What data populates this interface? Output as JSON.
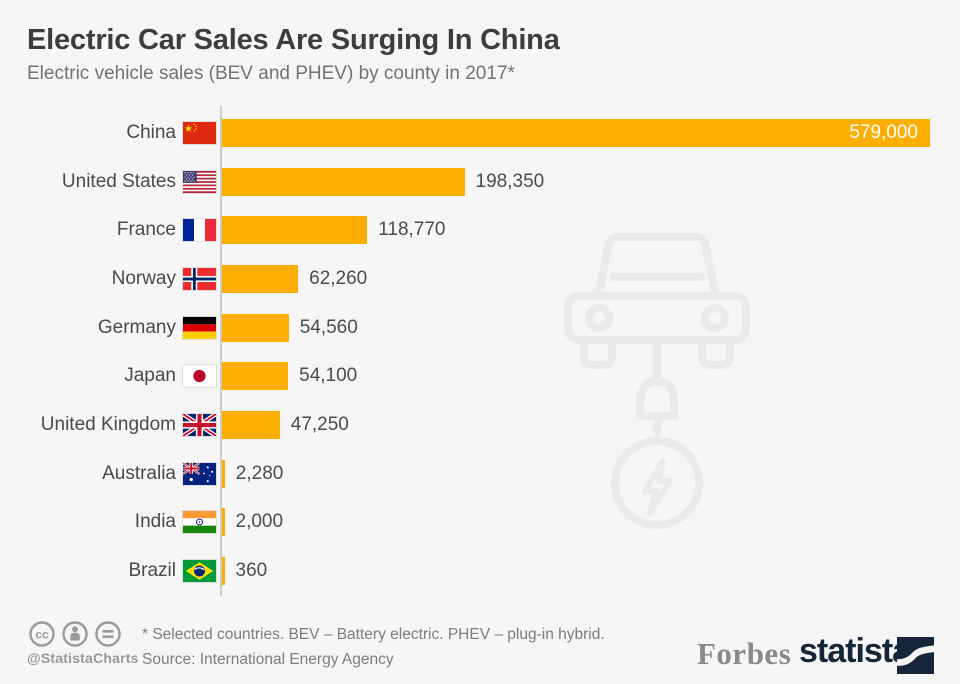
{
  "header": {
    "title": "Electric Car Sales Are Surging In China",
    "subtitle": "Electric vehicle sales (BEV and PHEV) by county in 2017*"
  },
  "chart_data": {
    "type": "bar",
    "orientation": "horizontal",
    "title": "Electric Car Sales Are Surging In China",
    "xlabel": "",
    "ylabel": "",
    "xlim": [
      0,
      579000
    ],
    "grid": false,
    "legend": false,
    "bar_color": "#fcae02",
    "categories": [
      "China",
      "United States",
      "France",
      "Norway",
      "Germany",
      "Japan",
      "United Kingdom",
      "Australia",
      "India",
      "Brazil"
    ],
    "values": [
      579000,
      198350,
      118770,
      62260,
      54560,
      54100,
      47250,
      2280,
      2000,
      360
    ],
    "rows": [
      {
        "country": "China",
        "value": 579000,
        "label": "579,000",
        "flag": "cn"
      },
      {
        "country": "United States",
        "value": 198350,
        "label": "198,350",
        "flag": "us"
      },
      {
        "country": "France",
        "value": 118770,
        "label": "118,770",
        "flag": "fr"
      },
      {
        "country": "Norway",
        "value": 62260,
        "label": "62,260",
        "flag": "no"
      },
      {
        "country": "Germany",
        "value": 54560,
        "label": "54,560",
        "flag": "de"
      },
      {
        "country": "Japan",
        "value": 54100,
        "label": "54,100",
        "flag": "jp"
      },
      {
        "country": "United Kingdom",
        "value": 47250,
        "label": "47,250",
        "flag": "gb"
      },
      {
        "country": "Australia",
        "value": 2280,
        "label": "2,280",
        "flag": "au"
      },
      {
        "country": "India",
        "value": 2000,
        "label": "2,000",
        "flag": "in"
      },
      {
        "country": "Brazil",
        "value": 360,
        "label": "360",
        "flag": "br"
      }
    ]
  },
  "footer": {
    "handle": "@StatistaCharts",
    "note": "* Selected countries. BEV – Battery electric. PHEV – plug-in hybrid.",
    "source": "Source: International Energy Agency",
    "brand_forbes": "Forbes",
    "brand_statista": "statista"
  }
}
